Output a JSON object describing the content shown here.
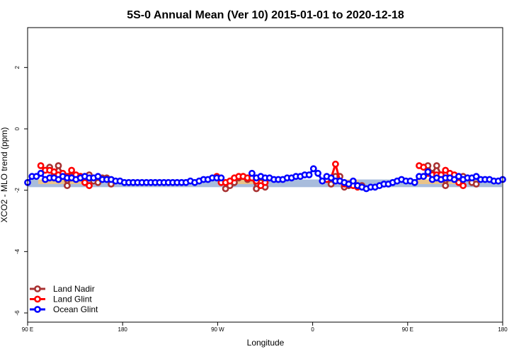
{
  "colors": {
    "land_nadir": "#a83232",
    "land_glint": "#ff0000",
    "ocean_glint": "#0000ff",
    "band": "#a8bcdc",
    "orange": "#ffc66e"
  },
  "chart_data": {
    "type": "line",
    "title": "5S-0 Annual Mean (Ver 10)   2015-01-01 to 2020-12-18",
    "xlabel": "Longitude",
    "ylabel": "XCO2 - MLO trend (ppm)",
    "xlim": [
      -90,
      180
    ],
    "ylim": [
      -6.3,
      3.3
    ],
    "x_ticks": [
      {
        "value": -90,
        "label": "90 E"
      },
      {
        "value": -36,
        "label": "180"
      },
      {
        "value": 18,
        "label": "90 W"
      },
      {
        "value": 72,
        "label": "0"
      },
      {
        "value": 126,
        "label": "90 E"
      },
      {
        "value": 180,
        "label": "180"
      }
    ],
    "y_ticks": [
      {
        "value": -6,
        "label": "-6"
      },
      {
        "value": -4,
        "label": "-4"
      },
      {
        "value": -2,
        "label": "-2"
      },
      {
        "value": 0,
        "label": "0"
      },
      {
        "value": 2,
        "label": "2"
      }
    ],
    "band": [
      -1.65,
      -1.9
    ],
    "grid": false,
    "legend_position": "bottom-left",
    "series": [
      {
        "name": "Land Nadir",
        "color": "#a83232",
        "segments": [
          [
            [
              -77.5,
              -1.25
            ],
            [
              -75,
              -1.5
            ],
            [
              -72.5,
              -1.2
            ],
            [
              -70,
              -1.5
            ],
            [
              -67.5,
              -1.85
            ],
            [
              -65,
              -1.55
            ],
            [
              -62.5,
              -1.6
            ],
            [
              -60,
              -1.55
            ],
            [
              -57.5,
              -1.55
            ],
            [
              -55,
              -1.5
            ],
            [
              -52.5,
              -1.7
            ],
            [
              -50,
              -1.75
            ],
            [
              -47.5,
              -1.6
            ],
            [
              -45,
              -1.6
            ],
            [
              -42.5,
              -1.8
            ]
          ],
          [
            [
              22.5,
              -1.95
            ],
            [
              25,
              -1.85
            ],
            [
              27.5,
              -1.75
            ],
            [
              30,
              -1.6
            ],
            [
              32.5,
              -1.55
            ],
            [
              35,
              -1.65
            ],
            [
              37.5,
              -1.55
            ],
            [
              40,
              -1.95
            ],
            [
              42.5,
              -1.75
            ],
            [
              45,
              -1.9
            ]
          ],
          [
            [
              82.5,
              -1.8
            ],
            [
              85,
              -1.55
            ],
            [
              87.5,
              -1.55
            ],
            [
              90,
              -1.9
            ],
            [
              92.5,
              -1.85
            ]
          ],
          [
            [
              97.5,
              -1.85
            ],
            [
              100,
              -1.85
            ]
          ],
          [
            [
              137.5,
              -1.2
            ],
            [
              140,
              -1.45
            ],
            [
              142.5,
              -1.2
            ],
            [
              145,
              -1.5
            ],
            [
              147.5,
              -1.85
            ],
            [
              150,
              -1.55
            ],
            [
              152.5,
              -1.55
            ],
            [
              155,
              -1.55
            ],
            [
              157.5,
              -1.55
            ],
            [
              160,
              -1.6
            ],
            [
              162.5,
              -1.75
            ],
            [
              165,
              -1.8
            ]
          ]
        ]
      },
      {
        "name": "Land Glint",
        "color": "#ff0000",
        "segments": [
          [
            [
              -82.5,
              -1.2
            ],
            [
              -80,
              -1.35
            ],
            [
              -77.5,
              -1.35
            ],
            [
              -75,
              -1.4
            ],
            [
              -72.5,
              -1.5
            ],
            [
              -70,
              -1.45
            ],
            [
              -67.5,
              -1.55
            ],
            [
              -65,
              -1.35
            ],
            [
              -62.5,
              -1.5
            ],
            [
              -60,
              -1.55
            ],
            [
              -57.5,
              -1.75
            ],
            [
              -55,
              -1.85
            ]
          ],
          [
            [
              17.5,
              -1.55
            ],
            [
              20,
              -1.75
            ],
            [
              22.5,
              -1.75
            ],
            [
              25,
              -1.7
            ],
            [
              27.5,
              -1.6
            ],
            [
              30,
              -1.55
            ],
            [
              32.5,
              -1.55
            ],
            [
              35,
              -1.6
            ],
            [
              37.5,
              -1.6
            ],
            [
              40,
              -1.7
            ],
            [
              42.5,
              -1.85
            ],
            [
              45,
              -1.75
            ]
          ],
          [
            [
              80,
              -1.65
            ],
            [
              82.5,
              -1.6
            ],
            [
              85,
              -1.15
            ],
            [
              87.5,
              -1.7
            ],
            [
              90,
              -1.8
            ],
            [
              92.5,
              -1.8
            ],
            [
              95,
              -1.85
            ],
            [
              97.5,
              -1.9
            ]
          ],
          [
            [
              132.5,
              -1.2
            ],
            [
              135,
              -1.25
            ],
            [
              137.5,
              -1.45
            ],
            [
              140,
              -1.5
            ],
            [
              142.5,
              -1.5
            ],
            [
              145,
              -1.5
            ],
            [
              147.5,
              -1.35
            ],
            [
              150,
              -1.45
            ],
            [
              152.5,
              -1.5
            ],
            [
              155,
              -1.75
            ],
            [
              157.5,
              -1.85
            ]
          ]
        ]
      },
      {
        "name": "Ocean Glint",
        "color": "#0000ff",
        "segments": [
          [
            [
              -90,
              -1.75
            ],
            [
              -87.5,
              -1.55
            ],
            [
              -85,
              -1.55
            ],
            [
              -82.5,
              -1.45
            ],
            [
              -80,
              -1.65
            ],
            [
              -77.5,
              -1.6
            ],
            [
              -75,
              -1.6
            ],
            [
              -72.5,
              -1.65
            ],
            [
              -70,
              -1.55
            ],
            [
              -67.5,
              -1.6
            ],
            [
              -65,
              -1.6
            ],
            [
              -62.5,
              -1.65
            ],
            [
              -60,
              -1.6
            ],
            [
              -57.5,
              -1.55
            ],
            [
              -55,
              -1.6
            ],
            [
              -52.5,
              -1.6
            ],
            [
              -50,
              -1.55
            ],
            [
              -47.5,
              -1.65
            ],
            [
              -45,
              -1.65
            ],
            [
              -42.5,
              -1.65
            ],
            [
              -40,
              -1.7
            ],
            [
              -37.5,
              -1.7
            ],
            [
              -35,
              -1.75
            ],
            [
              -32.5,
              -1.75
            ],
            [
              -30,
              -1.75
            ],
            [
              -27.5,
              -1.75
            ],
            [
              -25,
              -1.75
            ],
            [
              -22.5,
              -1.75
            ],
            [
              -20,
              -1.75
            ],
            [
              -17.5,
              -1.75
            ],
            [
              -15,
              -1.75
            ],
            [
              -12.5,
              -1.75
            ],
            [
              -10,
              -1.75
            ],
            [
              -7.5,
              -1.75
            ],
            [
              -5,
              -1.75
            ],
            [
              -2.5,
              -1.75
            ],
            [
              0,
              -1.75
            ],
            [
              2.5,
              -1.7
            ],
            [
              5,
              -1.75
            ],
            [
              7.5,
              -1.7
            ],
            [
              10,
              -1.65
            ],
            [
              12.5,
              -1.65
            ],
            [
              15,
              -1.6
            ],
            [
              17.5,
              -1.6
            ],
            [
              20,
              -1.6
            ]
          ],
          [
            [
              37.5,
              -1.45
            ],
            [
              40,
              -1.6
            ],
            [
              42.5,
              -1.55
            ],
            [
              45,
              -1.6
            ],
            [
              47.5,
              -1.6
            ],
            [
              50,
              -1.65
            ],
            [
              52.5,
              -1.65
            ],
            [
              55,
              -1.65
            ],
            [
              57.5,
              -1.6
            ],
            [
              60,
              -1.6
            ],
            [
              62.5,
              -1.55
            ],
            [
              65,
              -1.55
            ],
            [
              67.5,
              -1.5
            ],
            [
              70,
              -1.5
            ],
            [
              72.5,
              -1.3
            ],
            [
              75,
              -1.45
            ],
            [
              77.5,
              -1.7
            ],
            [
              80,
              -1.55
            ],
            [
              82.5,
              -1.6
            ],
            [
              85,
              -1.7
            ],
            [
              87.5,
              -1.7
            ],
            [
              90,
              -1.75
            ],
            [
              92.5,
              -1.8
            ],
            [
              95,
              -1.7
            ],
            [
              97.5,
              -1.85
            ],
            [
              100,
              -1.9
            ],
            [
              102.5,
              -1.95
            ],
            [
              105,
              -1.9
            ],
            [
              107.5,
              -1.9
            ],
            [
              110,
              -1.85
            ],
            [
              112.5,
              -1.8
            ],
            [
              115,
              -1.8
            ],
            [
              117.5,
              -1.75
            ],
            [
              120,
              -1.7
            ],
            [
              122.5,
              -1.65
            ],
            [
              125,
              -1.7
            ],
            [
              127.5,
              -1.7
            ],
            [
              130,
              -1.75
            ],
            [
              132.5,
              -1.55
            ],
            [
              135,
              -1.55
            ],
            [
              137.5,
              -1.4
            ],
            [
              140,
              -1.65
            ],
            [
              142.5,
              -1.6
            ],
            [
              145,
              -1.65
            ],
            [
              147.5,
              -1.6
            ],
            [
              150,
              -1.6
            ],
            [
              152.5,
              -1.65
            ],
            [
              155,
              -1.55
            ],
            [
              157.5,
              -1.65
            ],
            [
              160,
              -1.6
            ],
            [
              162.5,
              -1.6
            ],
            [
              165,
              -1.55
            ],
            [
              167.5,
              -1.65
            ],
            [
              170,
              -1.65
            ],
            [
              172.5,
              -1.65
            ],
            [
              175,
              -1.7
            ],
            [
              177.5,
              -1.7
            ],
            [
              180,
              -1.65
            ]
          ]
        ]
      }
    ]
  }
}
